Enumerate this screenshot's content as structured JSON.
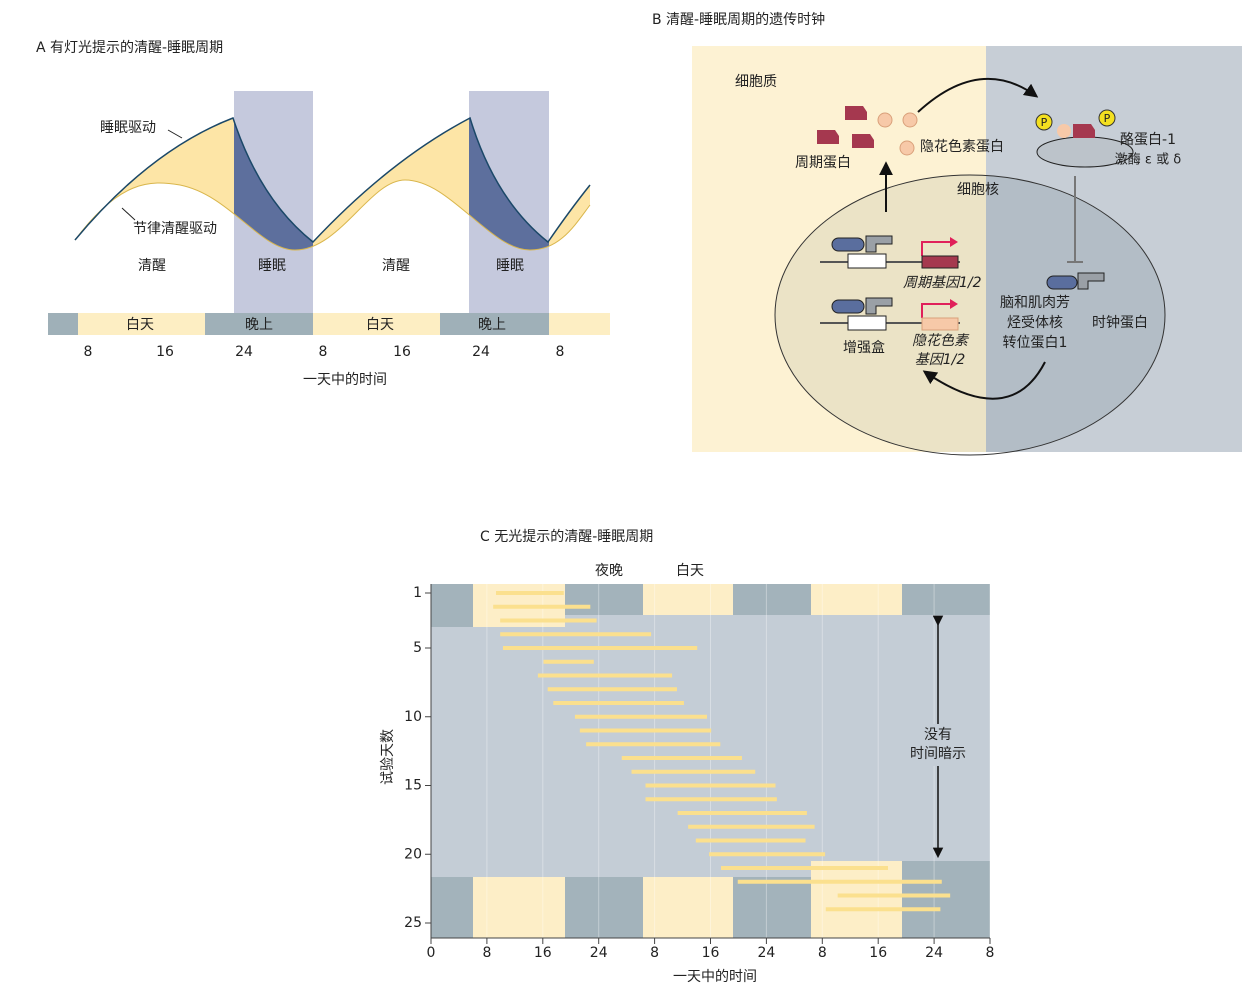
{
  "panel_a": {
    "title": "A  有灯光提示的清醒-睡眠周期",
    "curve_labels": [
      "睡眠驱动",
      "节律清醒驱动"
    ],
    "state_labels": [
      "清醒",
      "睡眠",
      "清醒",
      "睡眠"
    ],
    "bands": [
      "白天",
      "晚上",
      "白天",
      "晚上"
    ],
    "xticks": [
      "8",
      "16",
      "24",
      "8",
      "16",
      "24",
      "8"
    ],
    "xlabel": "一天中的时间"
  },
  "panel_b": {
    "title": "B  清醒-睡眠周期的遗传时钟",
    "cytoplasm": "细胞质",
    "nucleus": "细胞核",
    "cry_protein": "隐花色素蛋白",
    "per_protein": "周期蛋白",
    "kinase": [
      "酪蛋白-1",
      "激酶 ε 或 δ"
    ],
    "per_gene": "周期基因1/2",
    "enhancer": "增强盒",
    "cry_gene": [
      "隐花色素",
      "基因1/2"
    ],
    "bmal": [
      "脑和肌肉芳",
      "烃受体核",
      "转位蛋白1"
    ],
    "clock": "时钟蛋白",
    "phospho": [
      "P",
      "P"
    ]
  },
  "panel_c": {
    "title": "C  无光提示的清醒-睡眠周期",
    "top_labels": [
      "夜晚",
      "白天"
    ],
    "annotation": [
      "没有",
      "时间暗示"
    ],
    "ylabel": "试验天数",
    "xlabel": "一天中的时间",
    "xlim": [
      0,
      80
    ],
    "ylim": [
      1,
      25
    ],
    "xticks": [
      0,
      8,
      16,
      24,
      {
        "value": 32,
        "label": "8"
      },
      {
        "value": 40,
        "label": "16"
      },
      {
        "value": 48,
        "label": "24"
      },
      {
        "value": 56,
        "label": "8"
      },
      {
        "value": 64,
        "label": "16"
      },
      {
        "value": 72,
        "label": "24"
      },
      {
        "value": 80,
        "label": "8"
      }
    ],
    "yticks": [
      1,
      5,
      10,
      15,
      20,
      25
    ],
    "bars": [
      [
        9.3,
        19
      ],
      [
        8.9,
        22.8
      ],
      [
        9.9,
        23.7
      ],
      [
        9.9,
        31.5
      ],
      [
        10.3,
        38.1
      ],
      [
        16.1,
        23.3
      ],
      [
        15.3,
        34.5
      ],
      [
        16.7,
        35.2
      ],
      [
        17.5,
        36.2
      ],
      [
        20.6,
        39.5
      ],
      [
        21.3,
        40.1
      ],
      [
        22.2,
        41.4
      ],
      [
        27.3,
        44.5
      ],
      [
        28.7,
        46.4
      ],
      [
        30.7,
        49.3
      ],
      [
        30.7,
        49.5
      ],
      [
        35.3,
        53.8
      ],
      [
        36.8,
        54.9
      ],
      [
        37.9,
        53.6
      ],
      [
        39.8,
        56.4
      ],
      [
        41.5,
        65.4
      ],
      [
        43.9,
        73.1
      ],
      [
        58.2,
        74.3
      ],
      [
        56.5,
        72.9
      ]
    ]
  }
}
